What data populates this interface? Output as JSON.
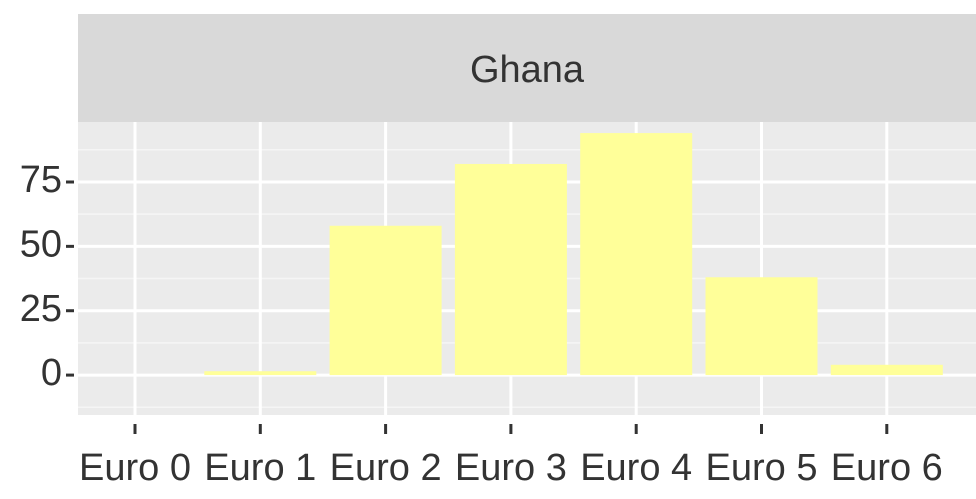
{
  "chart_data": {
    "type": "bar",
    "title": "Ghana",
    "categories": [
      "Euro 0",
      "Euro 1",
      "Euro 2",
      "Euro 3",
      "Euro 4",
      "Euro 5",
      "Euro 6"
    ],
    "values": [
      0,
      1.5,
      58,
      82,
      94,
      38,
      4
    ],
    "color": "#ffff99",
    "ylim": [
      -15.5,
      98.3
    ],
    "yticks": [
      0,
      25,
      50,
      75
    ],
    "grid": true
  }
}
